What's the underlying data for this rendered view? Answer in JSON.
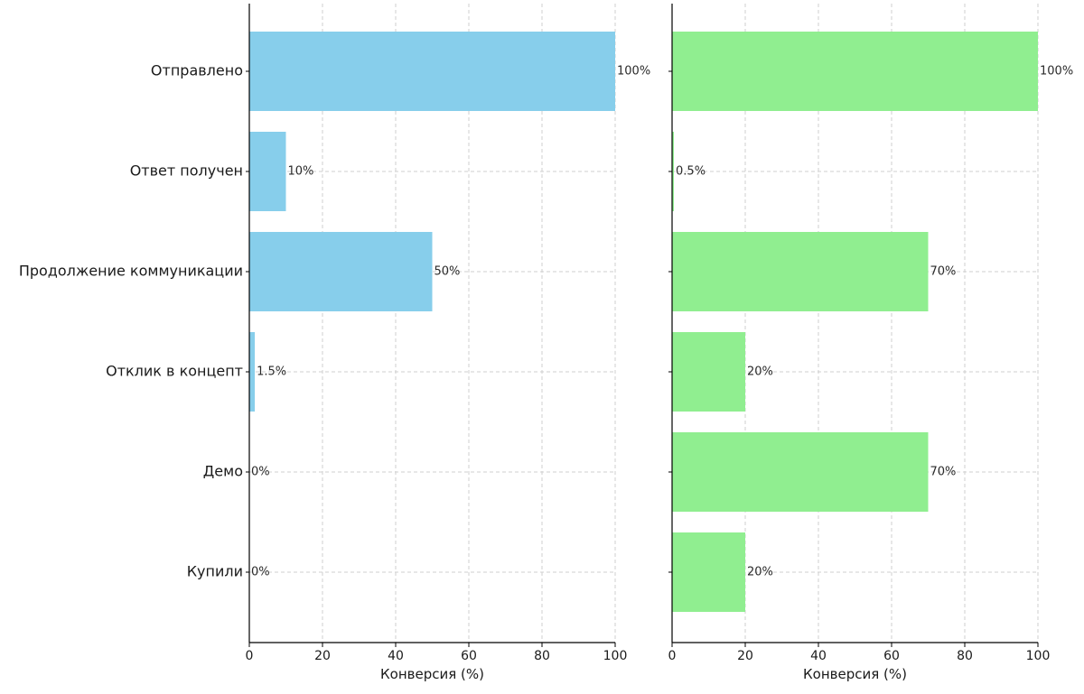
{
  "chart_data": {
    "type": "bar",
    "orientation": "horizontal",
    "categories": [
      "Отправлено",
      "Ответ получен",
      "Продолжение коммуникации",
      "Отклик в концепт",
      "Демо",
      "Купили"
    ],
    "panels": [
      {
        "color": "#87CEEB",
        "values": [
          100,
          10,
          50,
          1.5,
          0,
          0
        ],
        "data_labels": [
          "100%",
          "10%",
          "50%",
          "1.5%",
          "0%",
          "0%"
        ],
        "xlabel": "Конверсия (%)",
        "xlim": [
          0,
          100
        ],
        "xticks": [
          0,
          20,
          40,
          60,
          80,
          100
        ],
        "show_category_labels": true
      },
      {
        "color": "#90EE90",
        "values": [
          100,
          0.5,
          70,
          20,
          70,
          20
        ],
        "data_labels": [
          "100%",
          "0.5%",
          "70%",
          "20%",
          "70%",
          "20%"
        ],
        "xlabel": "Конверсия (%)",
        "xlim": [
          0,
          100
        ],
        "xticks": [
          0,
          20,
          40,
          60,
          80,
          100
        ],
        "show_category_labels": false
      }
    ],
    "grid": true
  }
}
